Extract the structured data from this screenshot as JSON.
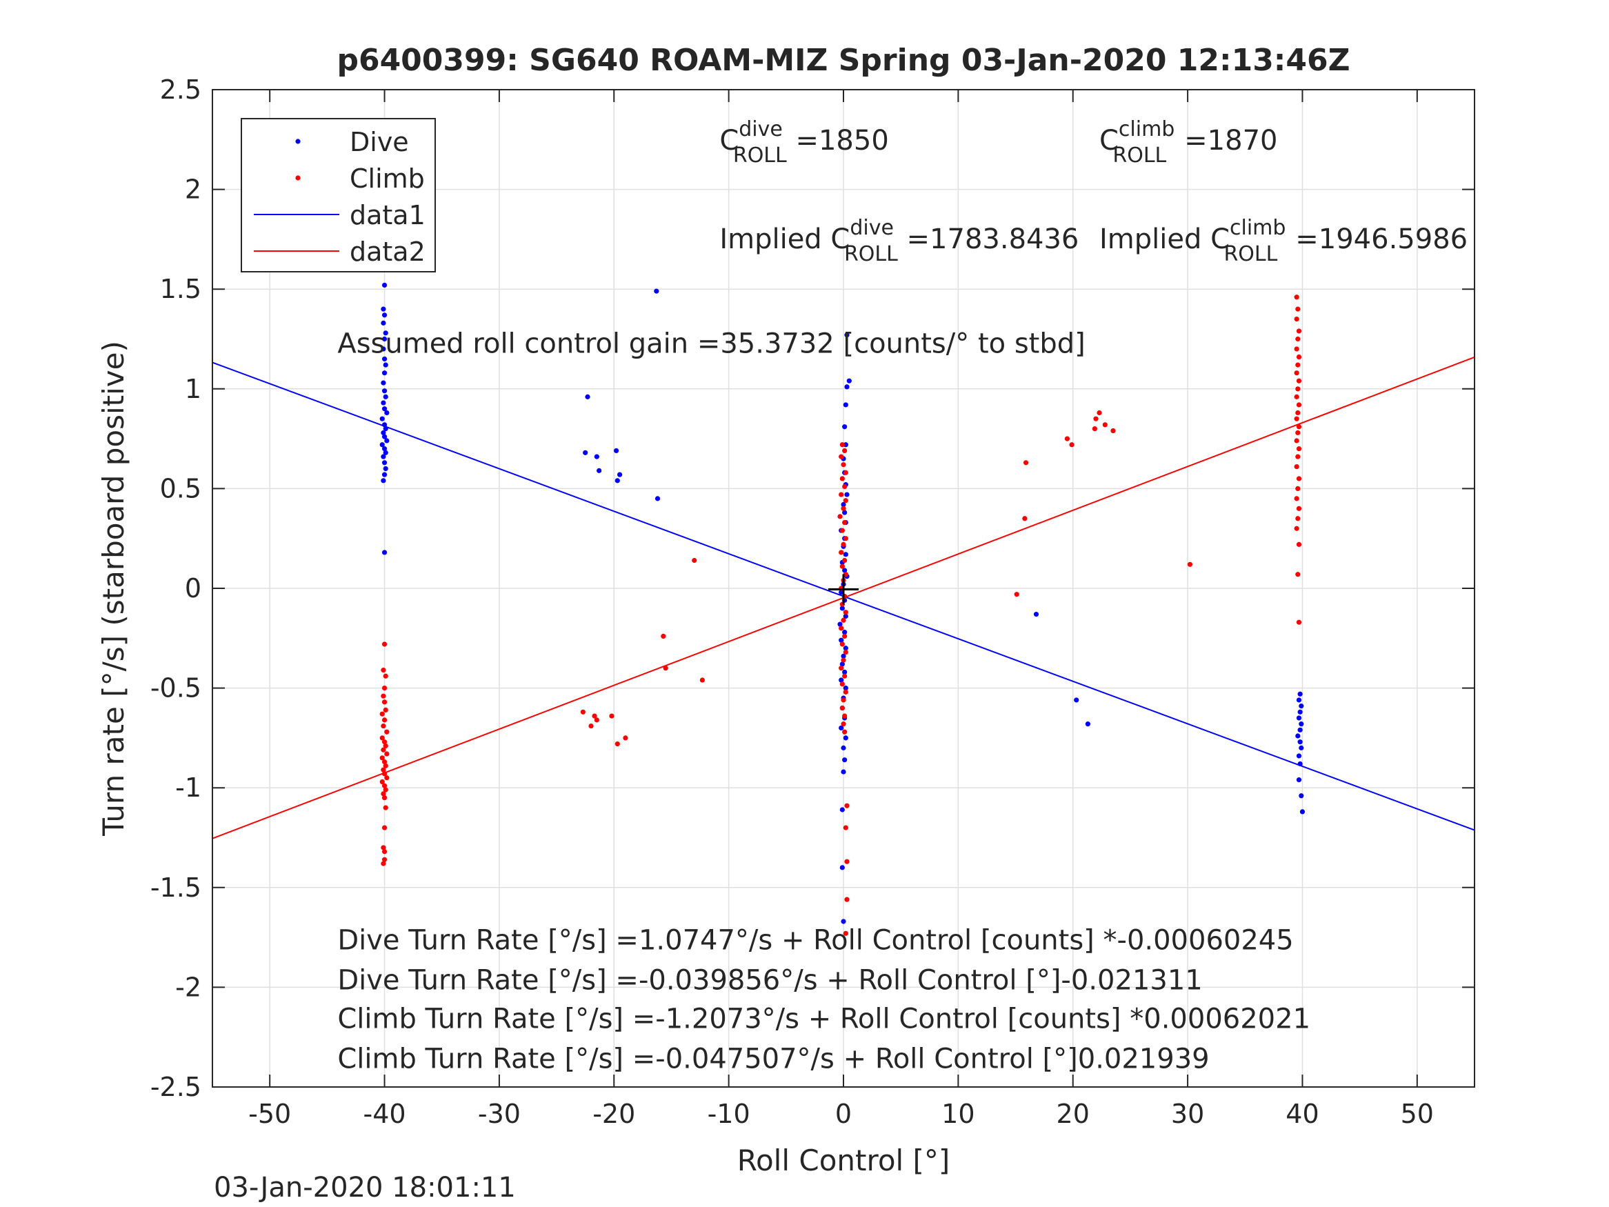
{
  "figure": {
    "timestamp": "03-Jan-2020 18:01:11",
    "background": "#ffffff"
  },
  "chart_data": {
    "type": "scatter",
    "title": "p6400399: SG640 ROAM-MIZ Spring 03-Jan-2020 12:13:46Z",
    "xlabel": "Roll Control [°]",
    "ylabel": "Turn rate [°/s] (starboard positive)",
    "xlim": [
      -55,
      55
    ],
    "ylim": [
      -2.5,
      2.5
    ],
    "xticks": [
      -50,
      -40,
      -30,
      -20,
      -10,
      0,
      10,
      20,
      30,
      40,
      50
    ],
    "yticks": [
      -2.5,
      -2,
      -1.5,
      -1,
      -0.5,
      0,
      0.5,
      1,
      1.5,
      2,
      2.5
    ],
    "xtick_labels": [
      "-50",
      "-40",
      "-30",
      "-20",
      "-10",
      "0",
      "10",
      "20",
      "30",
      "40",
      "50"
    ],
    "ytick_labels": [
      "-2.5",
      "-2",
      "-1.5",
      "-1",
      "-0.5",
      "0",
      "0.5",
      "1",
      "1.5",
      "2",
      "2.5"
    ],
    "grid": true,
    "legend_position": "top-left",
    "legend": [
      {
        "label": "Dive",
        "marker": "dot",
        "color": "#0000ff"
      },
      {
        "label": "Climb",
        "marker": "dot",
        "color": "#ff0000"
      },
      {
        "label": "data1",
        "marker": "line",
        "color": "#0000ff"
      },
      {
        "label": "data2",
        "marker": "line",
        "color": "#ff0000"
      }
    ],
    "series": [
      {
        "name": "Dive",
        "color": "#0000ff",
        "points": [
          [
            -40,
            1.65
          ],
          [
            -40,
            1.52
          ],
          [
            -40.1,
            1.4
          ],
          [
            -40,
            1.37
          ],
          [
            -40.1,
            1.33
          ],
          [
            -39.9,
            1.28
          ],
          [
            -40,
            1.25
          ],
          [
            -40.1,
            1.2
          ],
          [
            -40,
            1.15
          ],
          [
            -39.9,
            1.12
          ],
          [
            -40,
            1.08
          ],
          [
            -40.1,
            1.03
          ],
          [
            -40,
            0.99
          ],
          [
            -39.9,
            0.96
          ],
          [
            -40.1,
            0.93
          ],
          [
            -40,
            0.9
          ],
          [
            -39.8,
            0.88
          ],
          [
            -40.2,
            0.85
          ],
          [
            -40,
            0.82
          ],
          [
            -39.9,
            0.8
          ],
          [
            -40.1,
            0.78
          ],
          [
            -40,
            0.76
          ],
          [
            -39.8,
            0.74
          ],
          [
            -40.2,
            0.72
          ],
          [
            -40,
            0.7
          ],
          [
            -39.9,
            0.68
          ],
          [
            -40.1,
            0.66
          ],
          [
            -40,
            0.63
          ],
          [
            -39.9,
            0.6
          ],
          [
            -40,
            0.57
          ],
          [
            -40.1,
            0.54
          ],
          [
            -40,
            0.18
          ],
          [
            -22.3,
            0.96
          ],
          [
            -22.5,
            0.68
          ],
          [
            -21.5,
            0.66
          ],
          [
            -21.3,
            0.59
          ],
          [
            -19.8,
            0.69
          ],
          [
            -19.5,
            0.57
          ],
          [
            -19.7,
            0.54
          ],
          [
            -16.3,
            1.49
          ],
          [
            -16.2,
            0.45
          ],
          [
            0.3,
            1.27
          ],
          [
            0.5,
            1.04
          ],
          [
            0.3,
            1.01
          ],
          [
            0.2,
            0.92
          ],
          [
            0.1,
            0.81
          ],
          [
            0.2,
            0.72
          ],
          [
            0,
            0.65
          ],
          [
            0.1,
            0.58
          ],
          [
            0.2,
            0.52
          ],
          [
            0.3,
            0.47
          ],
          [
            0,
            0.42
          ],
          [
            0.1,
            0.38
          ],
          [
            0.2,
            0.33
          ],
          [
            -0.2,
            0.29
          ],
          [
            0.1,
            0.25
          ],
          [
            0,
            0.21
          ],
          [
            0.2,
            0.17
          ],
          [
            -0.1,
            0.13
          ],
          [
            0.1,
            0.09
          ],
          [
            0.3,
            0.06
          ],
          [
            0,
            0.02
          ],
          [
            -0.2,
            -0.02
          ],
          [
            0.1,
            -0.06
          ],
          [
            -0.1,
            -0.1
          ],
          [
            0.2,
            -0.14
          ],
          [
            -0.3,
            -0.18
          ],
          [
            0.1,
            -0.22
          ],
          [
            -0.2,
            -0.26
          ],
          [
            0.2,
            -0.3
          ],
          [
            0,
            -0.34
          ],
          [
            -0.1,
            -0.38
          ],
          [
            0.1,
            -0.42
          ],
          [
            -0.2,
            -0.46
          ],
          [
            0.2,
            -0.5
          ],
          [
            0,
            -0.55
          ],
          [
            -0.1,
            -0.6
          ],
          [
            0.1,
            -0.65
          ],
          [
            -0.2,
            -0.7
          ],
          [
            0.2,
            -0.75
          ],
          [
            0,
            -0.8
          ],
          [
            0.1,
            -0.86
          ],
          [
            0,
            -0.92
          ],
          [
            -0.1,
            -1.11
          ],
          [
            -0.1,
            -1.4
          ],
          [
            0,
            -1.67
          ],
          [
            16.8,
            -0.13
          ],
          [
            20.3,
            -0.56
          ],
          [
            21.3,
            -0.68
          ],
          [
            39.8,
            -0.53
          ],
          [
            39.7,
            -0.56
          ],
          [
            39.9,
            -0.59
          ],
          [
            39.8,
            -0.62
          ],
          [
            39.7,
            -0.65
          ],
          [
            39.9,
            -0.68
          ],
          [
            39.8,
            -0.71
          ],
          [
            39.6,
            -0.74
          ],
          [
            39.8,
            -0.77
          ],
          [
            39.9,
            -0.8
          ],
          [
            39.7,
            -0.84
          ],
          [
            39.8,
            -0.88
          ],
          [
            39.7,
            -0.96
          ],
          [
            39.9,
            -1.04
          ],
          [
            40,
            -1.12
          ]
        ]
      },
      {
        "name": "Climb",
        "color": "#ff0000",
        "points": [
          [
            -40,
            -0.28
          ],
          [
            -40.1,
            -0.41
          ],
          [
            -39.9,
            -0.44
          ],
          [
            -40,
            -0.5
          ],
          [
            -40.1,
            -0.54
          ],
          [
            -40,
            -0.57
          ],
          [
            -39.9,
            -0.61
          ],
          [
            -40.2,
            -0.63
          ],
          [
            -40,
            -0.66
          ],
          [
            -40.1,
            -0.69
          ],
          [
            -39.8,
            -0.72
          ],
          [
            -40.2,
            -0.75
          ],
          [
            -40,
            -0.77
          ],
          [
            -39.9,
            -0.79
          ],
          [
            -40.1,
            -0.81
          ],
          [
            -39.8,
            -0.83
          ],
          [
            -40.2,
            -0.85
          ],
          [
            -40,
            -0.87
          ],
          [
            -39.9,
            -0.89
          ],
          [
            -40.1,
            -0.91
          ],
          [
            -40,
            -0.93
          ],
          [
            -39.8,
            -0.95
          ],
          [
            -40.2,
            -0.97
          ],
          [
            -40,
            -0.99
          ],
          [
            -39.9,
            -1.01
          ],
          [
            -40.1,
            -1.03
          ],
          [
            -40,
            -1.05
          ],
          [
            -39.9,
            -1.1
          ],
          [
            -40,
            -1.2
          ],
          [
            -40.1,
            -1.3
          ],
          [
            -40,
            -1.32
          ],
          [
            -40,
            -1.36
          ],
          [
            -40.1,
            -1.38
          ],
          [
            -22.7,
            -0.62
          ],
          [
            -22.0,
            -0.69
          ],
          [
            -21.7,
            -0.64
          ],
          [
            -21.5,
            -0.66
          ],
          [
            -20.2,
            -0.64
          ],
          [
            -19.7,
            -0.78
          ],
          [
            -19.0,
            -0.75
          ],
          [
            -15.7,
            -0.24
          ],
          [
            -15.5,
            -0.4
          ],
          [
            -13.0,
            0.14
          ],
          [
            -12.3,
            -0.46
          ],
          [
            -0.1,
            0.72
          ],
          [
            0.1,
            0.69
          ],
          [
            -0.2,
            0.66
          ],
          [
            0,
            0.62
          ],
          [
            0.2,
            0.58
          ],
          [
            -0.1,
            0.55
          ],
          [
            0.1,
            0.51
          ],
          [
            -0.2,
            0.47
          ],
          [
            0.2,
            0.44
          ],
          [
            0,
            0.4
          ],
          [
            -0.3,
            0.36
          ],
          [
            0.1,
            0.33
          ],
          [
            -0.1,
            0.29
          ],
          [
            0.2,
            0.25
          ],
          [
            0,
            0.22
          ],
          [
            -0.2,
            0.18
          ],
          [
            0.1,
            0.14
          ],
          [
            -0.1,
            0.11
          ],
          [
            0.2,
            0.07
          ],
          [
            0,
            0.04
          ],
          [
            -0.2,
            0.0
          ],
          [
            0.1,
            -0.04
          ],
          [
            -0.1,
            -0.08
          ],
          [
            0.2,
            -0.12
          ],
          [
            0,
            -0.16
          ],
          [
            -0.2,
            -0.2
          ],
          [
            0.1,
            -0.24
          ],
          [
            -0.1,
            -0.28
          ],
          [
            0.2,
            -0.32
          ],
          [
            0,
            -0.36
          ],
          [
            -0.2,
            -0.4
          ],
          [
            0.1,
            -0.44
          ],
          [
            -0.1,
            -0.48
          ],
          [
            0.2,
            -0.52
          ],
          [
            0,
            -0.56
          ],
          [
            -0.1,
            -0.6
          ],
          [
            0.1,
            -0.64
          ],
          [
            0,
            -0.68
          ],
          [
            0.1,
            -0.72
          ],
          [
            0.3,
            -1.09
          ],
          [
            0.2,
            -1.2
          ],
          [
            0.3,
            -1.37
          ],
          [
            0.3,
            -1.56
          ],
          [
            0.2,
            -1.73
          ],
          [
            15.1,
            -0.03
          ],
          [
            15.8,
            0.35
          ],
          [
            15.9,
            0.63
          ],
          [
            19.5,
            0.75
          ],
          [
            19.9,
            0.72
          ],
          [
            21.9,
            0.8
          ],
          [
            22.0,
            0.85
          ],
          [
            22.3,
            0.88
          ],
          [
            22.8,
            0.82
          ],
          [
            23.5,
            0.79
          ],
          [
            30.2,
            0.12
          ],
          [
            39.5,
            1.46
          ],
          [
            39.6,
            1.4
          ],
          [
            39.5,
            1.35
          ],
          [
            39.7,
            1.29
          ],
          [
            39.6,
            1.25
          ],
          [
            39.5,
            1.2
          ],
          [
            39.7,
            1.16
          ],
          [
            39.6,
            1.12
          ],
          [
            39.5,
            1.08
          ],
          [
            39.7,
            1.04
          ],
          [
            39.6,
            1.0
          ],
          [
            39.5,
            0.96
          ],
          [
            39.7,
            0.92
          ],
          [
            39.6,
            0.88
          ],
          [
            39.5,
            0.85
          ],
          [
            39.7,
            0.81
          ],
          [
            39.6,
            0.78
          ],
          [
            39.5,
            0.74
          ],
          [
            39.7,
            0.7
          ],
          [
            39.6,
            0.66
          ],
          [
            39.5,
            0.61
          ],
          [
            39.7,
            0.55
          ],
          [
            39.6,
            0.5
          ],
          [
            39.5,
            0.45
          ],
          [
            39.7,
            0.4
          ],
          [
            39.6,
            0.35
          ],
          [
            39.5,
            0.3
          ],
          [
            39.7,
            0.22
          ],
          [
            39.6,
            0.07
          ],
          [
            39.7,
            -0.17
          ]
        ]
      }
    ],
    "lines": [
      {
        "name": "data1",
        "color": "#0000ff",
        "x": [
          -55,
          55
        ],
        "y": [
          1.1324,
          -1.2121
        ]
      },
      {
        "name": "data2",
        "color": "#ff0000",
        "x": [
          -55,
          55
        ],
        "y": [
          -1.2541,
          1.1592
        ]
      }
    ],
    "marker": {
      "x": 0,
      "y": -0.005,
      "color": "#000000"
    },
    "annotations": [
      {
        "prefix": "C",
        "sup": "dive",
        "sub": "ROLL",
        "suffix": " =1850",
        "x": -10.8,
        "y": 2.2
      },
      {
        "prefix": "C",
        "sup": "climb",
        "sub": "ROLL",
        "suffix": " =1870",
        "x": 22.3,
        "y": 2.2
      },
      {
        "prefix": "Implied C",
        "sup": "dive",
        "sub": "ROLL",
        "suffix": " =1783.8436",
        "x": -10.8,
        "y": 1.705
      },
      {
        "prefix": "Implied C",
        "sup": "climb",
        "sub": "ROLL",
        "suffix": " =1946.5986",
        "x": 22.3,
        "y": 1.705
      },
      {
        "prefix": "Assumed roll control gain =35.3732 [counts/° to stbd]",
        "x": -44.1,
        "y": 1.18
      },
      {
        "prefix": "Dive Turn Rate [°/s] =1.0747°/s + Roll Control [counts] *-0.00060245",
        "x": -44.1,
        "y": -1.81
      },
      {
        "prefix": "Dive Turn Rate [°/s] =-0.039856°/s + Roll Control [°]-0.021311",
        "x": -44.1,
        "y": -2.01
      },
      {
        "prefix": "Climb Turn Rate [°/s] =-1.2073°/s + Roll Control [counts] *0.00062021",
        "x": -44.1,
        "y": -2.205
      },
      {
        "prefix": "Climb Turn Rate [°/s] =-0.047507°/s + Roll Control [°]0.021939",
        "x": -44.1,
        "y": -2.405
      }
    ]
  }
}
